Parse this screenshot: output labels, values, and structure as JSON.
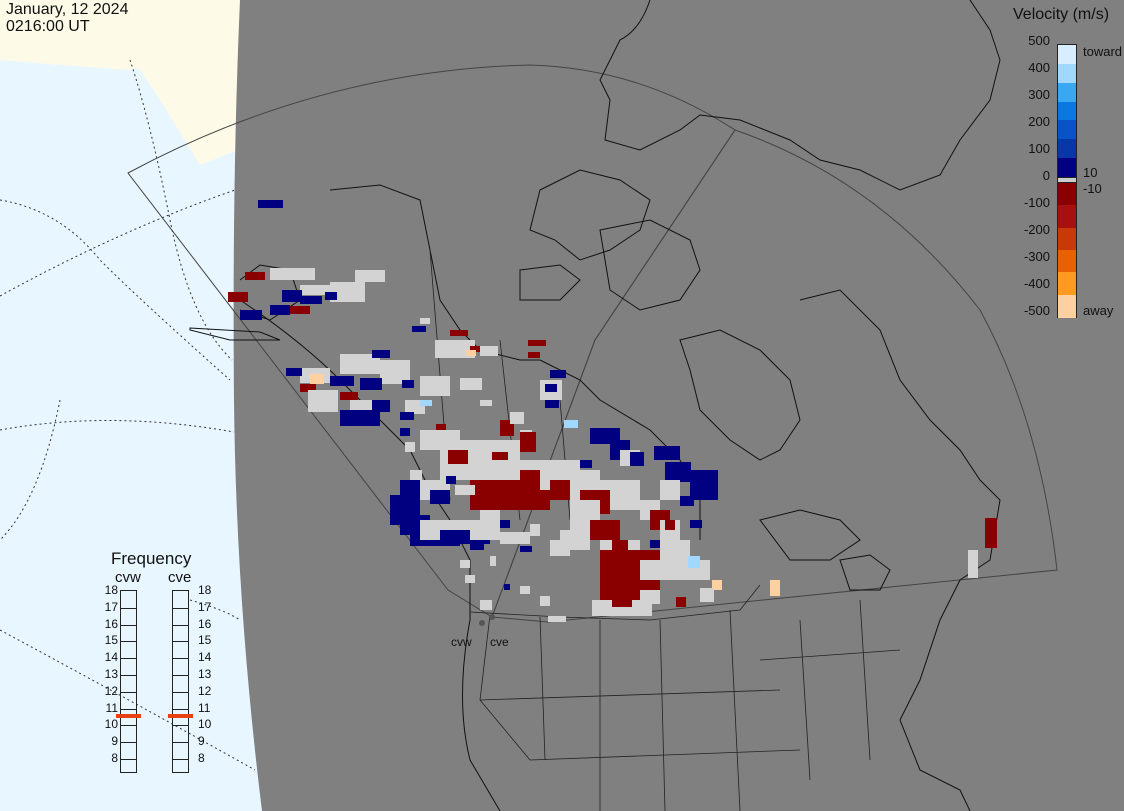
{
  "header": {
    "date": "January, 12 2024",
    "time": "0216:00 UT"
  },
  "colorbar": {
    "title": "Velocity (m/s)",
    "ticks": [
      "500",
      "400",
      "300",
      "200",
      "100",
      "0",
      "-100",
      "-200",
      "-300",
      "-400",
      "-500"
    ],
    "toward_label": "toward",
    "away_label": "away",
    "pos_threshold": "10",
    "neg_threshold": "-10",
    "colors": [
      "#d8eeff",
      "#a0d8ff",
      "#3aa8f0",
      "#0a78e0",
      "#0a52c8",
      "#0838a8",
      "#000080",
      "#8a0000",
      "#a81010",
      "#c83808",
      "#e86000",
      "#ff9a20",
      "#ffd0a0"
    ]
  },
  "radars": [
    {
      "name": "cvw",
      "frequency_mhz": 10.5
    },
    {
      "name": "cve",
      "frequency_mhz": 10.5
    }
  ],
  "frequency_panel": {
    "title": "Frequency",
    "scale": [
      "18",
      "17",
      "16",
      "15",
      "14",
      "13",
      "12",
      "11",
      "10",
      "9",
      "8"
    ]
  },
  "map_colors": {
    "ocean_outside": "#e8f6ff",
    "land_outside": "#fdfbe8",
    "plot_area": "#808080",
    "ground_scatter": "#d3d3d3"
  }
}
